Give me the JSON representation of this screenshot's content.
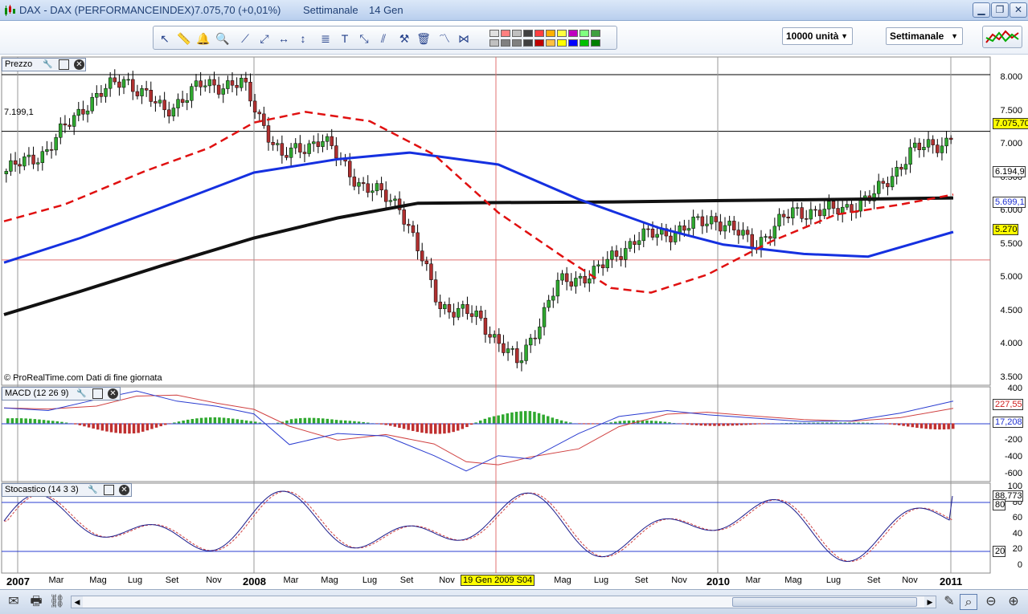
{
  "window": {
    "title_symbol": "DAX - DAX (PERFORMANCEINDEX)",
    "title_price": "7.075,70 (+0,01%)",
    "title_period": "Settimanale",
    "title_date": "14 Gen",
    "minimize": "▁",
    "maximize": "❐",
    "close": "✕"
  },
  "toolbar": {
    "units_value": "10000 unità",
    "period_value": "Settimanale",
    "swatch_colors": [
      "#e0e0e0",
      "#ff8080",
      "#c0c0c0",
      "#404040",
      "#ff4040",
      "#ffb000",
      "#ffff40",
      "#c000c0",
      "#80ff80",
      "#40a040",
      "#c0c0c0",
      "#808080",
      "#808080",
      "#404040",
      "#c00000",
      "#ffc040",
      "#ffff00",
      "#0000ff",
      "#00c000",
      "#008000"
    ]
  },
  "panels": {
    "price": {
      "label": "Prezzo",
      "level_label": "7.199,1",
      "credit": "© ProRealTime.com  Dati di fine giornata",
      "y_ticks": [
        "8.000",
        "7.500",
        "7.000",
        "6.500",
        "6.000",
        "5.500",
        "5.000",
        "4.500",
        "4.000",
        "3.500"
      ],
      "last_price": "7.075,70",
      "ma_black": "6.194,9",
      "ma_blue": "5.699,1",
      "cursor_level": "5.270"
    },
    "macd": {
      "label": "MACD (12 26 9)",
      "y_ticks": [
        "400",
        "200",
        "0",
        "-200",
        "-400",
        "-600"
      ],
      "value_1": "227,55",
      "value_2": "17,208"
    },
    "stoch": {
      "label": "Stocastico (14 3 3)",
      "y_ticks": [
        "100",
        "80",
        "60",
        "40",
        "20",
        "0"
      ],
      "value_main": "88,773",
      "value_80": "80",
      "value_20": "20"
    }
  },
  "x_axis": {
    "labels": [
      "2007",
      "Mar",
      "Mag",
      "Lug",
      "Set",
      "Nov",
      "2008",
      "Mar",
      "Mag",
      "Lug",
      "Set",
      "Nov",
      "Mag",
      "Lug",
      "Set",
      "Nov",
      "2010",
      "Mar",
      "Mag",
      "Lug",
      "Set",
      "Nov",
      "2011"
    ],
    "cursor_label": "19 Gen 2009 S04"
  },
  "chart_data": {
    "type": "candlestick",
    "title": "DAX - DAX (PERFORMANCEINDEX)",
    "period": "Settimanale",
    "x_range": [
      "2007-01",
      "2011-01"
    ],
    "ylim": [
      3500,
      8200
    ],
    "series": [
      {
        "name": "DAX",
        "x": [
          "2007-01",
          "2007-03",
          "2007-05",
          "2007-07",
          "2007-09",
          "2007-11",
          "2008-01",
          "2008-03",
          "2008-05",
          "2008-07",
          "2008-09",
          "2008-11",
          "2009-01",
          "2009-03",
          "2009-05",
          "2009-07",
          "2009-09",
          "2009-11",
          "2010-01",
          "2010-03",
          "2010-05",
          "2010-07",
          "2010-09",
          "2010-11",
          "2011-01"
        ],
        "values": [
          6600,
          6900,
          7600,
          8000,
          7500,
          7900,
          7900,
          6800,
          7100,
          6400,
          6100,
          4600,
          4400,
          3700,
          4900,
          5100,
          5600,
          5700,
          5900,
          5500,
          6000,
          6000,
          6200,
          6900,
          7075.7
        ]
      }
    ],
    "indicator_values": {
      "last_close": 7075.7,
      "change_pct": 0.01,
      "moving_average_black": 6194.9,
      "moving_average_blue": 5699.1,
      "level_line": 7199.1,
      "cursor_level": 5270,
      "macd": 227.55,
      "macd_signal": 17.208,
      "stochastic": 88.773
    },
    "macd_ylim": [
      -650,
      400
    ],
    "stoch_ylim": [
      0,
      100
    ]
  }
}
